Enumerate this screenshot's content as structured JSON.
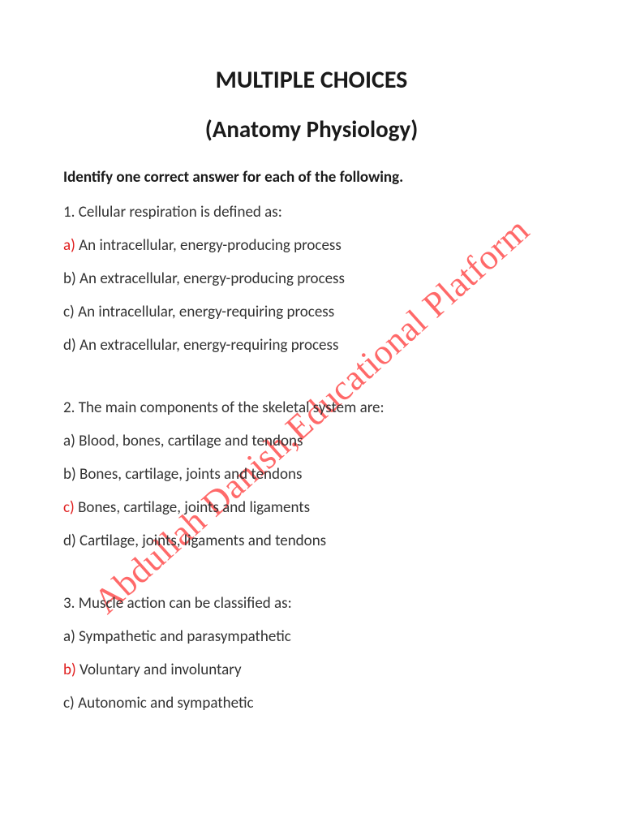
{
  "title_main": "MULTIPLE CHOICES",
  "title_sub": "(Anatomy Physiology)",
  "instruction": "Identify one correct answer for each of the following.",
  "watermark_text": "Abdullah Danish,Educational Platform",
  "colors": {
    "correct_label": "#e02020",
    "body_text": "#333333",
    "heading_text": "#1a1a1a",
    "watermark": "#ff1a1a",
    "background": "#ffffff"
  },
  "typography": {
    "title_fontsize": 30,
    "subtitle_fontsize": 29,
    "body_fontsize": 19,
    "watermark_fontsize": 44,
    "watermark_angle_deg": -42
  },
  "questions": [
    {
      "number": "1.",
      "stem": "Cellular respiration is defined as:",
      "options": [
        {
          "label": "a)",
          "text": " An intracellular, energy-producing process",
          "correct": true
        },
        {
          "label": "b)",
          "text": " An extracellular, energy-producing process",
          "correct": false
        },
        {
          "label": "c)",
          "text": " An intracellular, energy-requiring process",
          "correct": false
        },
        {
          "label": "d)",
          "text": " An extracellular, energy-requiring process",
          "correct": false
        }
      ]
    },
    {
      "number": "2.",
      "stem": "The main components of the skeletal system are:",
      "options": [
        {
          "label": "a)",
          "text": " Blood, bones, cartilage and tendons",
          "correct": false
        },
        {
          "label": "b)",
          "text": " Bones, cartilage, joints and tendons",
          "correct": false
        },
        {
          "label": "c)",
          "text": " Bones, cartilage, joints and ligaments",
          "correct": true
        },
        {
          "label": "d)",
          "text": " Cartilage, joints, ligaments and tendons",
          "correct": false
        }
      ]
    },
    {
      "number": "3.",
      "stem": "Muscle action can be classified as:",
      "options": [
        {
          "label": "a)",
          "text": " Sympathetic and parasympathetic",
          "correct": false
        },
        {
          "label": "b)",
          "text": " Voluntary and involuntary",
          "correct": true
        },
        {
          "label": "c)",
          "text": " Autonomic and sympathetic",
          "correct": false
        }
      ]
    }
  ]
}
